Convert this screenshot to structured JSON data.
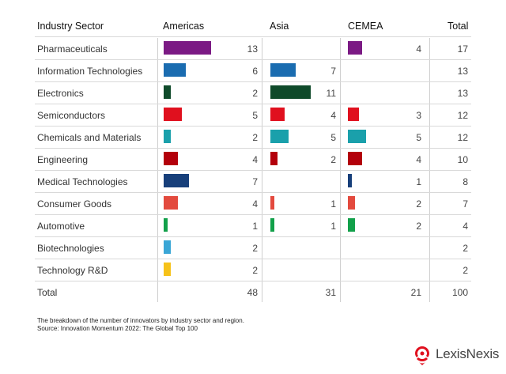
{
  "chart_data": {
    "type": "table",
    "columns": [
      "Industry Sector",
      "Americas",
      "Asia",
      "CEMEA",
      "Total"
    ],
    "rows": [
      {
        "sector": "Pharmaceuticals",
        "americas": 13,
        "asia": null,
        "cemea": 4,
        "total": 17,
        "color": "#7b1a84"
      },
      {
        "sector": "Information Technologies",
        "americas": 6,
        "asia": 7,
        "cemea": null,
        "total": 13,
        "color": "#1a6cb0"
      },
      {
        "sector": "Electronics",
        "americas": 2,
        "asia": 11,
        "cemea": null,
        "total": 13,
        "color": "#0f4a2a"
      },
      {
        "sector": "Semiconductors",
        "americas": 5,
        "asia": 4,
        "cemea": 3,
        "total": 12,
        "color": "#e0101e"
      },
      {
        "sector": "Chemicals and Materials",
        "americas": 2,
        "asia": 5,
        "cemea": 5,
        "total": 12,
        "color": "#1aa0ab"
      },
      {
        "sector": "Engineering",
        "americas": 4,
        "asia": 2,
        "cemea": 4,
        "total": 10,
        "color": "#b3000b"
      },
      {
        "sector": "Medical Technologies",
        "americas": 7,
        "asia": null,
        "cemea": 1,
        "total": 8,
        "color": "#173f7a"
      },
      {
        "sector": "Consumer Goods",
        "americas": 4,
        "asia": 1,
        "cemea": 2,
        "total": 7,
        "color": "#e34a3e"
      },
      {
        "sector": "Automotive",
        "americas": 1,
        "asia": 1,
        "cemea": 2,
        "total": 4,
        "color": "#12a04a"
      },
      {
        "sector": "Biotechnologies",
        "americas": 2,
        "asia": null,
        "cemea": null,
        "total": 2,
        "color": "#3aa6d6"
      },
      {
        "sector": "Technology R&D",
        "americas": 2,
        "asia": null,
        "cemea": null,
        "total": 2,
        "color": "#f6c21a"
      }
    ],
    "totals": {
      "label": "Total",
      "americas": 48,
      "asia": 31,
      "cemea": 21,
      "total": 100
    }
  },
  "footnote": {
    "line1": "The breakdown of the number of innovators by industry sector and region.",
    "line2": "Source: Innovation Momentum 2022: The Global Top 100"
  },
  "logo": {
    "text": "LexisNexis",
    "registered": "®",
    "color": "#e0101e"
  }
}
